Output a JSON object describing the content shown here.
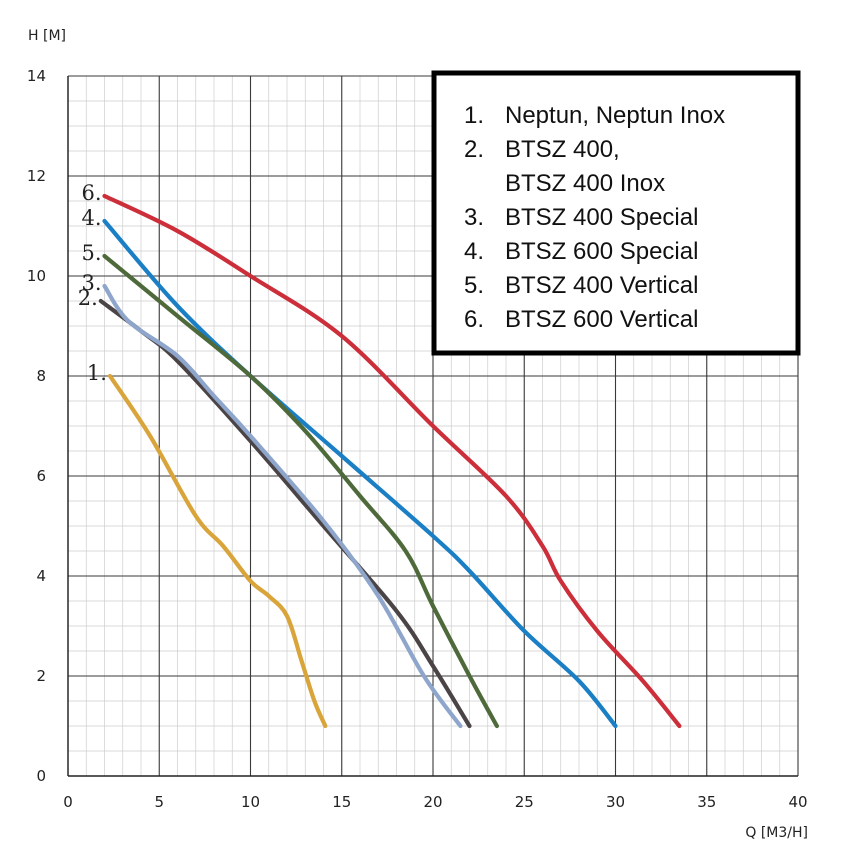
{
  "chart_data": {
    "type": "line",
    "xlabel": "Q [M3/H]",
    "ylabel": "H [M]",
    "xlim": [
      0,
      40
    ],
    "ylim": [
      0,
      14
    ],
    "x_ticks": [
      0,
      5,
      10,
      15,
      20,
      25,
      30,
      35,
      40
    ],
    "y_ticks": [
      0,
      2,
      4,
      6,
      8,
      10,
      12,
      14
    ],
    "grid": true,
    "legend_position": "top-right",
    "legend": [
      {
        "number": "1.",
        "lines": [
          "Neptun, Neptun Inox"
        ]
      },
      {
        "number": "2.",
        "lines": [
          "BTSZ 400,",
          "BTSZ 400 Inox"
        ]
      },
      {
        "number": "3.",
        "lines": [
          "BTSZ 400 Special"
        ]
      },
      {
        "number": "4.",
        "lines": [
          "BTSZ 600 Special"
        ]
      },
      {
        "number": "5.",
        "lines": [
          "BTSZ 400 Vertical"
        ]
      },
      {
        "number": "6.",
        "lines": [
          "BTSZ 600 Vertical"
        ]
      }
    ],
    "series": [
      {
        "label": "1.",
        "color": "#d9a43a",
        "points": [
          [
            2.3,
            8.0
          ],
          [
            4.5,
            6.8
          ],
          [
            7,
            5.2
          ],
          [
            8.5,
            4.6
          ],
          [
            10,
            3.9
          ],
          [
            11,
            3.6
          ],
          [
            12,
            3.2
          ],
          [
            12.8,
            2.3
          ],
          [
            13.5,
            1.5
          ],
          [
            14.1,
            1.0
          ]
        ]
      },
      {
        "label": "2.",
        "color": "#4b4446",
        "points": [
          [
            1.8,
            9.5
          ],
          [
            4,
            8.9
          ],
          [
            6,
            8.3
          ],
          [
            10,
            6.7
          ],
          [
            14,
            5.0
          ],
          [
            18,
            3.3
          ],
          [
            20,
            2.2
          ],
          [
            22,
            1.0
          ]
        ]
      },
      {
        "label": "3.",
        "color": "#8fa6cc",
        "points": [
          [
            2.0,
            9.8
          ],
          [
            3.3,
            9.1
          ],
          [
            6,
            8.4
          ],
          [
            8,
            7.6
          ],
          [
            10,
            6.8
          ],
          [
            14,
            5.1
          ],
          [
            17,
            3.6
          ],
          [
            19.5,
            2.0
          ],
          [
            21.5,
            1.0
          ]
        ]
      },
      {
        "label": "4.",
        "color": "#1a7fc4",
        "points": [
          [
            2.0,
            11.1
          ],
          [
            6,
            9.4
          ],
          [
            10,
            8.0
          ],
          [
            15,
            6.4
          ],
          [
            20,
            4.8
          ],
          [
            22,
            4.1
          ],
          [
            25,
            2.9
          ],
          [
            28,
            1.9
          ],
          [
            30,
            1.0
          ]
        ]
      },
      {
        "label": "5.",
        "color": "#4e6a3b",
        "points": [
          [
            2.0,
            10.4
          ],
          [
            6,
            9.2
          ],
          [
            10,
            8.0
          ],
          [
            13,
            6.9
          ],
          [
            16,
            5.6
          ],
          [
            18.5,
            4.5
          ],
          [
            20,
            3.4
          ],
          [
            22,
            2.0
          ],
          [
            23.5,
            1.0
          ]
        ]
      },
      {
        "label": "6.",
        "color": "#cc2e3a",
        "points": [
          [
            2.0,
            11.6
          ],
          [
            6,
            10.9
          ],
          [
            10,
            10.0
          ],
          [
            15,
            8.8
          ],
          [
            20,
            7.0
          ],
          [
            24,
            5.6
          ],
          [
            26,
            4.6
          ],
          [
            27,
            3.9
          ],
          [
            29,
            2.9
          ],
          [
            31.5,
            1.9
          ],
          [
            33.5,
            1.0
          ]
        ]
      }
    ]
  }
}
